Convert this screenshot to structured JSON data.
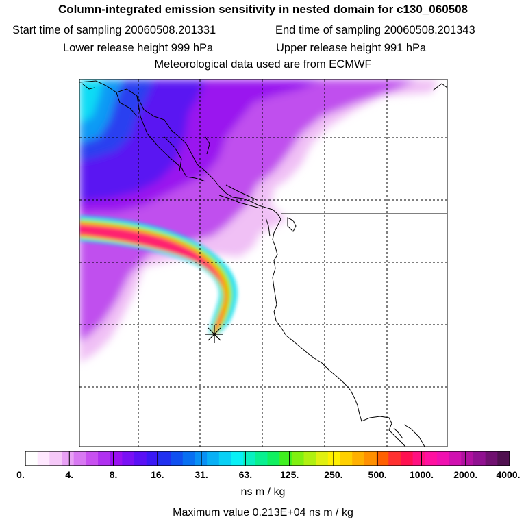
{
  "title": "Column-integrated emission sensitivity in nested domain for c130_060508",
  "start_label": "Start time of sampling 20060508.201331",
  "end_label": "End time of sampling 20060508.201343",
  "lower_label": "Lower release height  999 hPa",
  "upper_label": "Upper release height  991 hPa",
  "meteo_label": "Meteorological data used are from ECMWF",
  "colorbar": {
    "ticks": [
      "0.",
      "4.",
      "8.",
      "16.",
      "31.",
      "63.",
      "125.",
      "250.",
      "500.",
      "1000.",
      "2000.",
      "4000."
    ],
    "units": "ns m / kg",
    "colors": [
      "#ffffff",
      "#ffe8ff",
      "#f5c8f8",
      "#e8a0f5",
      "#d878f2",
      "#c850f0",
      "#b030f0",
      "#9a10f2",
      "#7a10f5",
      "#5a10f5",
      "#3a18f5",
      "#2030f0",
      "#1050f0",
      "#0870f2",
      "#0890f5",
      "#08b0f5",
      "#08d0f5",
      "#08f0f5",
      "#08f0c0",
      "#08f090",
      "#10f060",
      "#40f020",
      "#80f010",
      "#b0f010",
      "#e0f010",
      "#fff000",
      "#ffd000",
      "#ffb000",
      "#ff9000",
      "#ff6000",
      "#ff3030",
      "#ff1050",
      "#ff1080",
      "#ff10a0",
      "#f010b0",
      "#d010b0",
      "#b010a0",
      "#901090",
      "#701070",
      "#501050"
    ]
  },
  "max_label": "Maximum value  0.213E+04 ns m / kg"
}
